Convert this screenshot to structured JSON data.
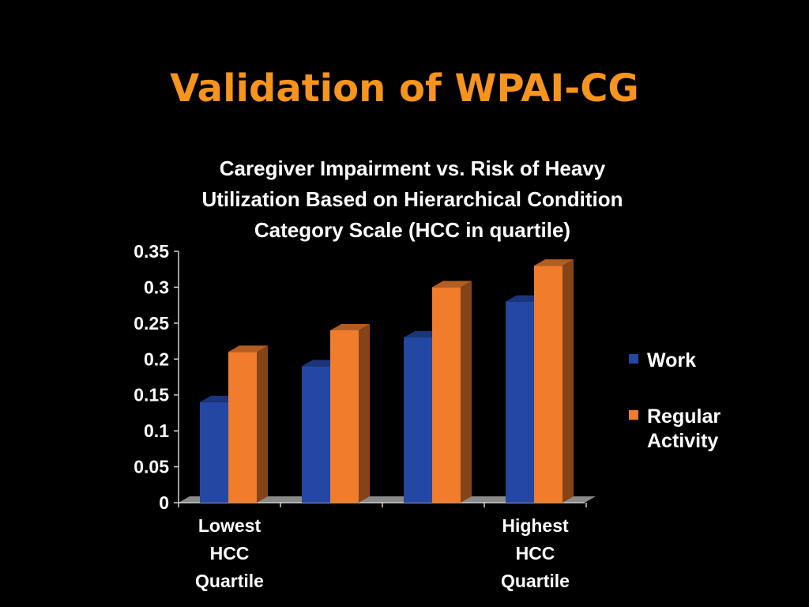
{
  "slide": {
    "title": "Validation of WPAI-CG"
  },
  "chart_data": {
    "type": "bar",
    "title": "Caregiver Impairment vs. Risk of Heavy Utilization Based on Hierarchical Condition Category Scale (HCC in quartile)",
    "title_lines": [
      "Caregiver Impairment vs. Risk of Heavy",
      "Utilization Based on Hierarchical Condition",
      "Category Scale (HCC in quartile)"
    ],
    "categories": [
      "Lowest HCC Quartile",
      "",
      "",
      "Highest HCC Quartile"
    ],
    "category_label_lines": [
      [
        "Lowest",
        "HCC",
        "Quartile"
      ],
      [],
      [],
      [
        "Highest",
        "HCC",
        "Quartile"
      ]
    ],
    "series": [
      {
        "name": "Work",
        "values": [
          0.14,
          0.19,
          0.23,
          0.28
        ],
        "color": "#2347a3"
      },
      {
        "name": "Regular Activity",
        "values": [
          0.21,
          0.24,
          0.3,
          0.33
        ],
        "color": "#f07c2c"
      }
    ],
    "legend_label_lines": [
      [
        "Work"
      ],
      [
        "Regular",
        "Activity"
      ]
    ],
    "y_ticks": [
      "0",
      "0.05",
      "0.1",
      "0.15",
      "0.2",
      "0.25",
      "0.3",
      "0.35"
    ],
    "ylim": [
      0,
      0.35
    ],
    "xlabel": "",
    "ylabel": "",
    "grid": false,
    "legend_position": "right",
    "style": "3d-bar"
  }
}
